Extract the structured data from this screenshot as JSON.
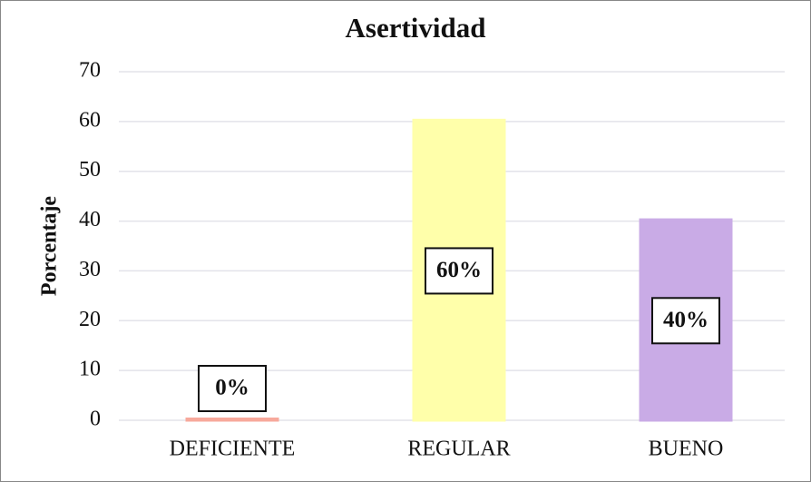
{
  "chart_data": {
    "type": "bar",
    "title": "Asertividad",
    "y_label": "Porcentaje",
    "categories": [
      "DEFICIENTE",
      "REGULAR",
      "BUENO"
    ],
    "values": [
      0,
      60,
      40
    ],
    "value_labels": [
      "0%",
      "60%",
      "40%"
    ],
    "colors": [
      "#f7a99c",
      "#ffffaa",
      "#c9abe6"
    ],
    "ylim": [
      0,
      70
    ],
    "yticks": [
      0,
      10,
      20,
      30,
      40,
      50,
      60,
      70
    ],
    "grid": true
  }
}
